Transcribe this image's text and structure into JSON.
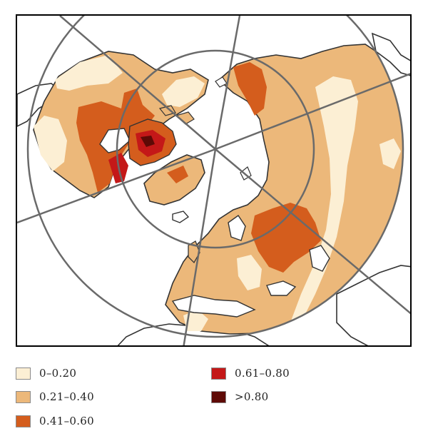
{
  "colors": {
    "class_0_020": "#fcefd4",
    "class_021_040": "#ecb87a",
    "class_041_060": "#d45d1d",
    "class_061_080": "#c41818",
    "class_gt_080": "#5e0a06",
    "ocean": "#ffffff",
    "coastline": "#333333",
    "graticule": "#6a6a6a",
    "frame": "#000000"
  },
  "legend": [
    {
      "label": "0–0.20",
      "color": "#fcefd4"
    },
    {
      "label": "0.21–0.40",
      "color": "#ecb87a"
    },
    {
      "label": "0.41–0.60",
      "color": "#d45d1d"
    },
    {
      "label": "0.61–0.80",
      "color": "#c41818"
    },
    {
      "label": ">0.80",
      "color": "#5e0a06"
    }
  ]
}
